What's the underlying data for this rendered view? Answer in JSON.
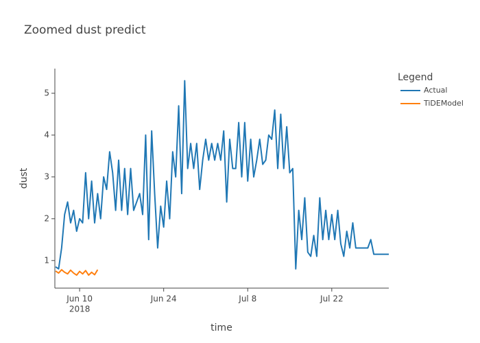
{
  "chart_data": {
    "type": "line",
    "title": "Zoomed dust predict",
    "x_label": "time",
    "y_label": "dust",
    "legend_title": "Legend",
    "legend_position": "right",
    "xlim": [
      "2018-06-05T21:00",
      "2018-07-31T12:00"
    ],
    "xticks": [
      {
        "value": "2018-06-10T00:00",
        "label": "Jun 10"
      },
      {
        "value": "2018-06-24T00:00",
        "label": "Jun 24"
      },
      {
        "value": "2018-07-08T00:00",
        "label": "Jul 8"
      },
      {
        "value": "2018-07-22T00:00",
        "label": "Jul 22"
      }
    ],
    "x_year_label": "2018",
    "ylim": [
      0.34,
      5.59
    ],
    "yticks": [
      1,
      2,
      3,
      4,
      5
    ],
    "grid": false,
    "series": [
      {
        "name": "Actual",
        "color": "#1f77b4",
        "x": [
          "2018-06-06T00:00",
          "2018-06-06T12:00",
          "2018-06-07T00:00",
          "2018-06-07T12:00",
          "2018-06-08T00:00",
          "2018-06-08T12:00",
          "2018-06-09T00:00",
          "2018-06-09T12:00",
          "2018-06-10T00:00",
          "2018-06-10T12:00",
          "2018-06-11T00:00",
          "2018-06-11T12:00",
          "2018-06-12T00:00",
          "2018-06-12T12:00",
          "2018-06-13T00:00",
          "2018-06-13T12:00",
          "2018-06-14T00:00",
          "2018-06-14T12:00",
          "2018-06-15T00:00",
          "2018-06-15T12:00",
          "2018-06-16T00:00",
          "2018-06-16T12:00",
          "2018-06-17T00:00",
          "2018-06-17T12:00",
          "2018-06-18T00:00",
          "2018-06-18T12:00",
          "2018-06-19T00:00",
          "2018-06-19T12:00",
          "2018-06-20T00:00",
          "2018-06-20T12:00",
          "2018-06-21T00:00",
          "2018-06-21T12:00",
          "2018-06-22T00:00",
          "2018-06-22T12:00",
          "2018-06-23T00:00",
          "2018-06-23T12:00",
          "2018-06-24T00:00",
          "2018-06-24T12:00",
          "2018-06-25T00:00",
          "2018-06-25T12:00",
          "2018-06-26T00:00",
          "2018-06-26T12:00",
          "2018-06-27T00:00",
          "2018-06-27T12:00",
          "2018-06-28T00:00",
          "2018-06-28T12:00",
          "2018-06-29T00:00",
          "2018-06-29T12:00",
          "2018-06-30T00:00",
          "2018-06-30T12:00",
          "2018-07-01T00:00",
          "2018-07-01T12:00",
          "2018-07-02T00:00",
          "2018-07-02T12:00",
          "2018-07-03T00:00",
          "2018-07-03T12:00",
          "2018-07-04T00:00",
          "2018-07-04T12:00",
          "2018-07-05T00:00",
          "2018-07-05T12:00",
          "2018-07-06T00:00",
          "2018-07-06T12:00",
          "2018-07-07T00:00",
          "2018-07-07T12:00",
          "2018-07-08T00:00",
          "2018-07-08T12:00",
          "2018-07-09T00:00",
          "2018-07-09T12:00",
          "2018-07-10T00:00",
          "2018-07-10T12:00",
          "2018-07-11T00:00",
          "2018-07-11T12:00",
          "2018-07-12T00:00",
          "2018-07-12T12:00",
          "2018-07-13T00:00",
          "2018-07-13T12:00",
          "2018-07-14T00:00",
          "2018-07-14T12:00",
          "2018-07-15T00:00",
          "2018-07-15T12:00",
          "2018-07-16T00:00",
          "2018-07-16T12:00",
          "2018-07-17T00:00",
          "2018-07-17T12:00",
          "2018-07-18T00:00",
          "2018-07-18T12:00",
          "2018-07-19T00:00",
          "2018-07-19T12:00",
          "2018-07-20T00:00",
          "2018-07-20T12:00",
          "2018-07-21T00:00",
          "2018-07-21T12:00",
          "2018-07-22T00:00",
          "2018-07-22T12:00",
          "2018-07-23T00:00",
          "2018-07-23T12:00",
          "2018-07-24T00:00",
          "2018-07-24T12:00",
          "2018-07-25T00:00",
          "2018-07-25T12:00",
          "2018-07-26T00:00",
          "2018-07-26T12:00",
          "2018-07-27T00:00",
          "2018-07-27T12:00",
          "2018-07-28T00:00",
          "2018-07-28T12:00",
          "2018-07-29T00:00",
          "2018-07-29T12:00",
          "2018-07-30T00:00",
          "2018-07-30T12:00",
          "2018-07-31T00:00",
          "2018-07-31T12:00"
        ],
        "values": [
          0.85,
          0.8,
          1.3,
          2.1,
          2.4,
          1.9,
          2.2,
          1.7,
          2.0,
          1.9,
          3.1,
          2.0,
          2.9,
          1.9,
          2.6,
          2.0,
          3.0,
          2.7,
          3.6,
          3.1,
          2.2,
          3.4,
          2.2,
          3.2,
          2.1,
          3.2,
          2.2,
          2.4,
          2.6,
          2.1,
          4.0,
          1.5,
          4.1,
          2.6,
          1.3,
          2.3,
          1.8,
          2.9,
          2.0,
          3.6,
          3.0,
          4.7,
          2.6,
          5.3,
          3.2,
          3.8,
          3.2,
          3.8,
          2.7,
          3.4,
          3.9,
          3.4,
          3.8,
          3.4,
          3.8,
          3.4,
          4.1,
          2.4,
          3.9,
          3.2,
          3.2,
          4.3,
          3.0,
          4.3,
          2.9,
          3.9,
          3.0,
          3.4,
          3.9,
          3.3,
          3.4,
          4.0,
          3.9,
          4.6,
          3.2,
          4.5,
          3.2,
          4.2,
          3.1,
          3.2,
          0.8,
          2.2,
          1.5,
          2.5,
          1.2,
          1.1,
          1.6,
          1.1,
          2.5,
          1.5,
          2.2,
          1.5,
          2.1,
          1.5,
          2.2,
          1.4,
          1.1,
          1.7,
          1.3,
          1.9,
          1.3,
          1.3,
          1.3,
          1.3,
          1.3,
          1.5,
          1.15,
          1.15,
          1.15,
          1.15,
          1.15,
          1.15
        ]
      },
      {
        "name": "TiDEModel",
        "color": "#ff7f0e",
        "x": [
          "2018-06-06T00:00",
          "2018-06-06T12:00",
          "2018-06-07T00:00",
          "2018-06-07T12:00",
          "2018-06-08T00:00",
          "2018-06-08T12:00",
          "2018-06-09T00:00",
          "2018-06-09T12:00",
          "2018-06-10T00:00",
          "2018-06-10T12:00",
          "2018-06-11T00:00",
          "2018-06-11T12:00",
          "2018-06-12T00:00",
          "2018-06-12T12:00",
          "2018-06-13T00:00"
        ],
        "values": [
          0.75,
          0.7,
          0.78,
          0.72,
          0.68,
          0.77,
          0.7,
          0.65,
          0.74,
          0.68,
          0.76,
          0.65,
          0.72,
          0.66,
          0.78
        ]
      }
    ]
  }
}
